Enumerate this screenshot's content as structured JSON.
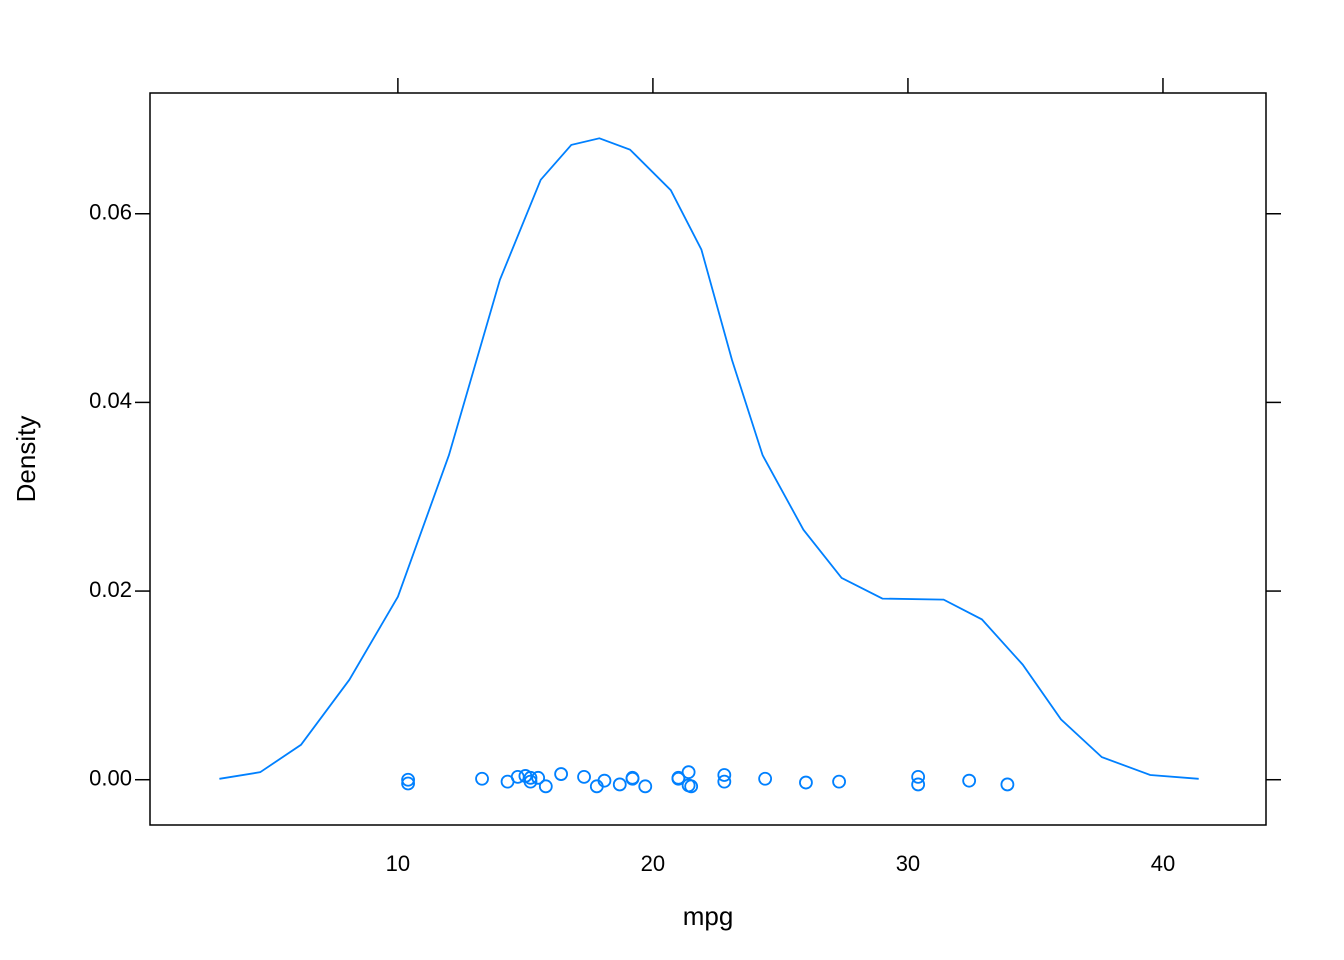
{
  "chart_data": {
    "type": "density",
    "xlabel": "mpg",
    "ylabel": "Density",
    "color": "#0080ff",
    "xlim": [
      0.28,
      44.04
    ],
    "ylim": [
      -0.0048,
      0.0728
    ],
    "xticks": [
      10,
      20,
      30,
      40
    ],
    "yticks": [
      {
        "value": 0,
        "label": "0.00"
      },
      {
        "value": 0.02,
        "label": "0.02"
      },
      {
        "value": 0.04,
        "label": "0.04"
      },
      {
        "value": 0.06,
        "label": "0.06"
      }
    ],
    "curve": {
      "x": [
        3,
        4.6,
        6.2,
        8.1,
        10,
        12,
        14,
        15.6,
        16.8,
        17.9,
        19.1,
        20.7,
        21.9,
        23.1,
        24.3,
        25.9,
        27.4,
        29.0,
        31.4,
        32.9,
        34.5,
        36.0,
        37.6,
        39.5,
        41.4
      ],
      "y": [
        0.0001,
        0.0008,
        0.0037,
        0.0106,
        0.0194,
        0.0344,
        0.053,
        0.0636,
        0.0673,
        0.068,
        0.0668,
        0.0625,
        0.0562,
        0.0445,
        0.0344,
        0.0265,
        0.0214,
        0.0192,
        0.0191,
        0.017,
        0.0122,
        0.0064,
        0.0024,
        0.0005,
        0.0001
      ]
    },
    "points": {
      "x": [
        21,
        21,
        22.8,
        21.4,
        18.7,
        18.1,
        14.3,
        24.4,
        22.8,
        19.2,
        17.8,
        16.4,
        17.3,
        15.2,
        10.4,
        10.4,
        14.7,
        32.4,
        30.4,
        33.9,
        21.5,
        15.5,
        15.2,
        13.3,
        19.2,
        27.3,
        26,
        30.4,
        15.8,
        19.7,
        15,
        21.4
      ],
      "y": [
        0.0002,
        0.0001,
        0.0005,
        0.0008,
        -0.0005,
        -0.0001,
        -0.0002,
        0.0001,
        -0.0002,
        0.0002,
        -0.0007,
        0.0006,
        0.0003,
        0.0002,
        0,
        -0.0004,
        0.0003,
        -0.0001,
        0.0003,
        -0.0005,
        -0.0007,
        0.0002,
        -0.0002,
        0.0001,
        0.0001,
        -0.0002,
        -0.0003,
        -0.0005,
        -0.0007,
        -0.0007,
        0.0004,
        -0.0006
      ]
    }
  }
}
